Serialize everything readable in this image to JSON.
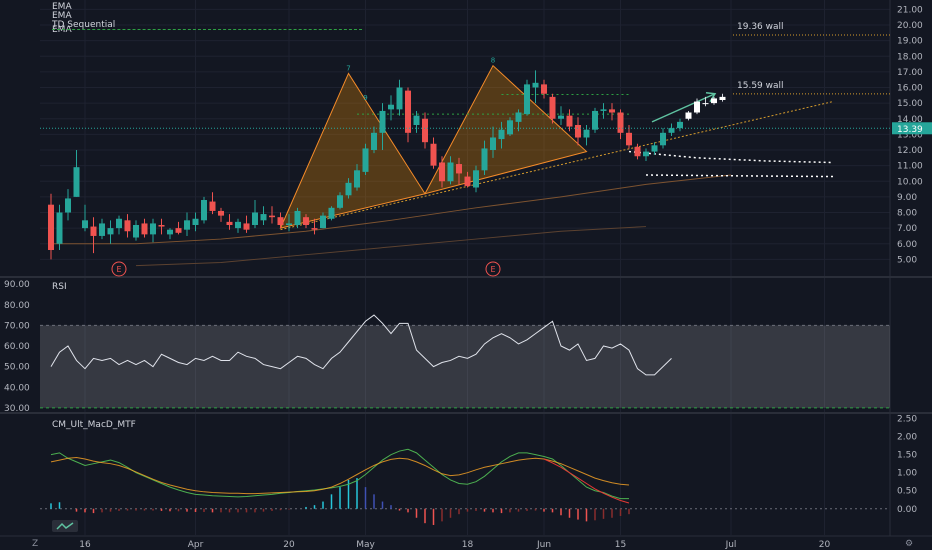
{
  "chart_data": {
    "type": "candlestick",
    "overlays": [
      "EMA",
      "EMA",
      "TD Sequential",
      "EMA"
    ],
    "price_axis": {
      "ticks": [
        "5.00",
        "6.00",
        "7.00",
        "8.00",
        "9.00",
        "10.00",
        "11.00",
        "12.00",
        "13.00",
        "14.00",
        "15.00",
        "16.00",
        "17.00",
        "18.00",
        "19.00",
        "20.00",
        "21.00"
      ],
      "min": 4,
      "max": 21.6
    },
    "last_price": "13.39",
    "time_labels": [
      {
        "label": "16",
        "bar": 4
      },
      {
        "label": "Apr",
        "bar": 17
      },
      {
        "label": "20",
        "bar": 28
      },
      {
        "label": "May",
        "bar": 37
      },
      {
        "label": "18",
        "bar": 49
      },
      {
        "label": "Jun",
        "bar": 58
      },
      {
        "label": "15",
        "bar": 67
      },
      {
        "label": "Jul",
        "bar": 80
      },
      {
        "label": "20",
        "bar": 91
      }
    ],
    "candles": [
      [
        8.5,
        9.2,
        5.0,
        5.6
      ],
      [
        6.0,
        8.5,
        5.6,
        8.0
      ],
      [
        8.0,
        9.5,
        7.5,
        8.9
      ],
      [
        9.0,
        12.0,
        9.0,
        10.9
      ],
      [
        7.0,
        8.5,
        6.8,
        7.5
      ],
      [
        7.1,
        7.7,
        5.4,
        6.5
      ],
      [
        6.5,
        7.6,
        6.3,
        7.3
      ],
      [
        6.6,
        7.5,
        6.0,
        7.0
      ],
      [
        7.0,
        7.8,
        6.6,
        7.6
      ],
      [
        7.5,
        7.9,
        6.4,
        6.8
      ],
      [
        6.4,
        7.5,
        6.2,
        7.2
      ],
      [
        7.3,
        7.6,
        6.4,
        6.6
      ],
      [
        6.6,
        7.6,
        6.1,
        7.3
      ],
      [
        7.2,
        7.6,
        6.6,
        7.1
      ],
      [
        6.6,
        7.0,
        6.3,
        6.9
      ],
      [
        7.0,
        7.4,
        6.6,
        6.7
      ],
      [
        6.9,
        8.0,
        6.5,
        7.5
      ],
      [
        7.2,
        8.0,
        6.8,
        7.6
      ],
      [
        7.5,
        9.0,
        7.3,
        8.8
      ],
      [
        8.7,
        9.3,
        7.9,
        8.1
      ],
      [
        8.1,
        8.3,
        7.4,
        7.8
      ],
      [
        7.4,
        7.9,
        6.9,
        7.2
      ],
      [
        7.0,
        7.6,
        6.7,
        7.4
      ],
      [
        7.3,
        7.8,
        6.7,
        6.9
      ],
      [
        7.2,
        8.8,
        7.0,
        8.0
      ],
      [
        7.5,
        8.4,
        7.2,
        7.9
      ],
      [
        7.8,
        8.4,
        7.3,
        7.7
      ],
      [
        7.7,
        8.0,
        7.0,
        7.2
      ],
      [
        7.2,
        7.9,
        6.8,
        7.3
      ],
      [
        7.2,
        8.3,
        7.0,
        8.1
      ],
      [
        7.7,
        7.9,
        7.0,
        7.2
      ],
      [
        7.0,
        7.6,
        6.6,
        6.9
      ],
      [
        7.0,
        8.0,
        7.0,
        7.8
      ],
      [
        7.6,
        8.4,
        7.5,
        8.3
      ],
      [
        8.3,
        9.3,
        8.2,
        9.1
      ],
      [
        9.1,
        10.2,
        8.9,
        9.9
      ],
      [
        9.6,
        11.1,
        9.4,
        10.7
      ],
      [
        10.6,
        12.4,
        10.4,
        12.1
      ],
      [
        12.0,
        13.5,
        11.8,
        13.1
      ],
      [
        13.1,
        15.0,
        12.0,
        14.5
      ]
    ],
    "candles_b": [
      [
        14.6,
        15.5,
        13.9,
        14.9
      ],
      [
        14.6,
        16.5,
        14.2,
        16.0
      ],
      [
        15.8,
        16.0,
        12.5,
        13.1
      ],
      [
        13.6,
        14.5,
        13.1,
        14.2
      ],
      [
        14.0,
        14.4,
        12.1,
        12.5
      ],
      [
        12.4,
        12.8,
        10.8,
        11.0
      ],
      [
        11.2,
        11.6,
        9.6,
        10.0
      ],
      [
        10.0,
        11.6,
        9.8,
        11.2
      ],
      [
        11.1,
        11.5,
        9.8,
        10.5
      ],
      [
        10.3,
        10.6,
        9.6,
        9.7
      ],
      [
        9.6,
        11.0,
        9.3,
        10.7
      ],
      [
        10.7,
        12.6,
        10.4,
        12.1
      ],
      [
        12.0,
        13.5,
        11.5,
        12.8
      ],
      [
        12.7,
        13.8,
        12.1,
        13.3
      ],
      [
        13.0,
        14.1,
        12.9,
        13.9
      ],
      [
        13.8,
        14.6,
        13.2,
        14.4
      ],
      [
        14.3,
        16.5,
        14.2,
        16.2
      ],
      [
        16.0,
        17.1,
        15.0,
        16.3
      ],
      [
        16.2,
        16.5,
        15.3,
        15.6
      ],
      [
        15.4,
        15.6,
        13.7,
        14.0
      ],
      [
        14.0,
        14.8,
        13.6,
        14.2
      ],
      [
        14.2,
        14.6,
        13.2,
        13.5
      ],
      [
        13.6,
        14.1,
        12.3,
        12.8
      ],
      [
        12.8,
        13.6,
        12.3,
        13.3
      ],
      [
        13.3,
        14.7,
        13.1,
        14.5
      ],
      [
        14.5,
        15.0,
        14.0,
        14.6
      ],
      [
        14.6,
        15.0,
        13.9,
        14.4
      ],
      [
        14.4,
        14.6,
        12.7,
        13.1
      ],
      [
        13.1,
        13.6,
        12.1,
        12.3
      ],
      [
        12.2,
        12.4,
        11.4,
        11.6
      ],
      [
        11.6,
        12.1,
        11.3,
        11.9
      ],
      [
        11.9,
        12.5,
        11.7,
        12.3
      ],
      [
        12.3,
        13.4,
        12.1,
        13.1
      ],
      [
        13.1,
        13.7,
        12.9,
        13.4
      ],
      [
        13.4,
        14.0,
        13.2,
        13.8
      ]
    ],
    "projection_candles": [
      [
        14.0,
        14.5,
        13.9,
        14.4
      ],
      [
        14.4,
        15.3,
        14.3,
        15.1
      ],
      [
        15.0,
        15.4,
        14.8,
        15.0
      ],
      [
        15.0,
        15.4,
        14.9,
        15.3
      ],
      [
        15.2,
        15.6,
        15.1,
        15.4
      ]
    ],
    "annotations": [
      {
        "label": "19.36 wall",
        "price": 19.36
      },
      {
        "label": "15.59 wall",
        "price": 15.59
      }
    ],
    "td_top_labels": [
      "7",
      "8",
      "9"
    ],
    "earnings_markers": [
      "E",
      "E"
    ],
    "rsi": {
      "title": "RSI",
      "ticks": [
        "30.00",
        "40.00",
        "50.00",
        "60.00",
        "70.00",
        "80.00",
        "90.00"
      ],
      "min": 28,
      "max": 92,
      "band": [
        30,
        70
      ],
      "values": [
        50,
        57,
        60,
        53,
        49,
        54,
        53,
        54,
        51,
        53,
        51,
        53,
        50,
        56,
        54,
        52,
        51,
        54,
        53,
        55,
        53,
        53,
        57,
        55,
        54,
        51,
        50,
        49,
        52,
        55,
        54,
        51,
        49,
        54,
        57,
        62,
        67,
        72,
        75,
        71,
        66,
        71,
        71,
        58,
        54,
        50,
        52,
        53,
        55,
        54,
        56,
        61,
        64,
        66,
        64,
        61,
        63,
        66,
        69,
        72,
        60,
        58,
        61,
        53,
        54,
        60,
        59,
        61,
        58,
        49,
        46,
        46,
        50,
        54
      ]
    },
    "macd": {
      "title": "CM_Ult_MacD_MTF",
      "ticks": [
        "0.00",
        "0.50",
        "1.00",
        "1.50",
        "2.00",
        "2.50"
      ],
      "min": -0.7,
      "max": 2.6,
      "macd": [
        1.5,
        1.55,
        1.4,
        1.3,
        1.2,
        1.25,
        1.3,
        1.35,
        1.28,
        1.15,
        1.0,
        0.9,
        0.8,
        0.7,
        0.6,
        0.52,
        0.45,
        0.4,
        0.38,
        0.36,
        0.35,
        0.34,
        0.33,
        0.34,
        0.36,
        0.38,
        0.4,
        0.43,
        0.45,
        0.48,
        0.5,
        0.52,
        0.55,
        0.58,
        0.62,
        0.68,
        0.78,
        0.95,
        1.15,
        1.35,
        1.5,
        1.6,
        1.65,
        1.55,
        1.35,
        1.15,
        0.95,
        0.8,
        0.7,
        0.68,
        0.75,
        0.9,
        1.1,
        1.3,
        1.45,
        1.55,
        1.55,
        1.5,
        1.45,
        1.38,
        1.2,
        1.0,
        0.8,
        0.6,
        0.5,
        0.45,
        0.35,
        0.28,
        0.28
      ],
      "signal": [
        1.3,
        1.35,
        1.4,
        1.42,
        1.38,
        1.32,
        1.28,
        1.25,
        1.2,
        1.12,
        1.02,
        0.92,
        0.82,
        0.73,
        0.66,
        0.6,
        0.54,
        0.5,
        0.47,
        0.45,
        0.44,
        0.43,
        0.43,
        0.42,
        0.42,
        0.43,
        0.44,
        0.45,
        0.46,
        0.47,
        0.48,
        0.5,
        0.54,
        0.6,
        0.7,
        0.82,
        0.95,
        1.08,
        1.2,
        1.3,
        1.37,
        1.4,
        1.38,
        1.3,
        1.2,
        1.08,
        0.97,
        0.92,
        0.94,
        1.0,
        1.08,
        1.15,
        1.2,
        1.25,
        1.3,
        1.35,
        1.38,
        1.4,
        1.38,
        1.32,
        1.25,
        1.15,
        1.05,
        0.95,
        0.85,
        0.78,
        0.72,
        0.68,
        0.66
      ],
      "hist": [
        0.15,
        0.18,
        0.0,
        -0.08,
        -0.1,
        -0.12,
        -0.1,
        -0.08,
        -0.06,
        -0.05,
        -0.05,
        -0.05,
        -0.05,
        -0.06,
        -0.07,
        -0.07,
        -0.08,
        -0.09,
        -0.09,
        -0.1,
        -0.1,
        -0.1,
        -0.1,
        -0.1,
        -0.1,
        -0.08,
        -0.06,
        -0.04,
        -0.02,
        0.0,
        0.05,
        0.1,
        0.2,
        0.4,
        0.6,
        0.8,
        0.85,
        0.6,
        0.4,
        0.2,
        0.1,
        -0.05,
        -0.1,
        -0.25,
        -0.4,
        -0.45,
        -0.35,
        -0.25,
        -0.15,
        -0.08,
        -0.06,
        -0.08,
        -0.1,
        -0.12,
        -0.1,
        -0.08,
        -0.06,
        -0.05,
        -0.08,
        -0.1,
        -0.18,
        -0.25,
        -0.3,
        -0.35,
        -0.32,
        -0.28,
        -0.25,
        -0.2,
        -0.15
      ]
    }
  }
}
